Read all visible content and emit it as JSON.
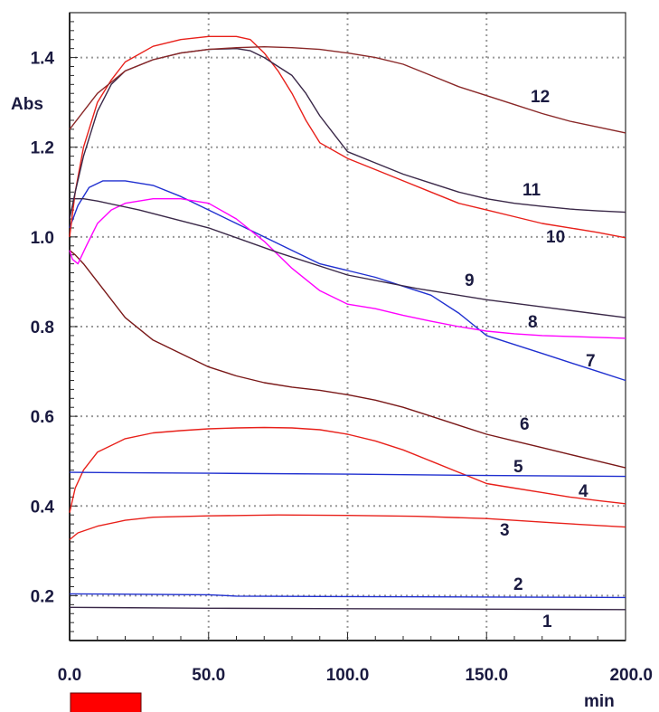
{
  "chart_data": {
    "type": "line",
    "title": "",
    "xlabel": "min",
    "ylabel": "Abs",
    "xlim": [
      0,
      200
    ],
    "ylim": [
      0.1,
      1.5
    ],
    "xticks": [
      "0.0",
      "50.0",
      "100.0",
      "150.0",
      "200.0"
    ],
    "yticks": [
      "0.2",
      "0.4",
      "0.6",
      "0.8",
      "1.0",
      "1.2",
      "1.4"
    ],
    "grid": true,
    "legend_swatch_color": "#ff0000",
    "series": [
      {
        "name": "1",
        "color": "#3a2848",
        "x": [
          0,
          50,
          100,
          150,
          200
        ],
        "y": [
          0.174,
          0.172,
          0.171,
          0.17,
          0.169
        ]
      },
      {
        "name": "2",
        "color": "#2030d0",
        "x": [
          0,
          50,
          60,
          100,
          150,
          200
        ],
        "y": [
          0.204,
          0.202,
          0.199,
          0.198,
          0.197,
          0.196
        ]
      },
      {
        "name": "3",
        "color": "#e8201a",
        "x": [
          0,
          3,
          10,
          20,
          30,
          50,
          75,
          100,
          125,
          150,
          175,
          200
        ],
        "y": [
          0.325,
          0.34,
          0.355,
          0.368,
          0.375,
          0.378,
          0.38,
          0.379,
          0.377,
          0.372,
          0.362,
          0.353
        ]
      },
      {
        "name": "4",
        "color": "#e8201a",
        "x": [
          0,
          2,
          5,
          10,
          20,
          30,
          40,
          50,
          60,
          70,
          80,
          90,
          100,
          110,
          120,
          130,
          140,
          150,
          160,
          170,
          180,
          190,
          200
        ],
        "y": [
          0.385,
          0.44,
          0.48,
          0.52,
          0.55,
          0.563,
          0.568,
          0.572,
          0.574,
          0.575,
          0.574,
          0.57,
          0.56,
          0.545,
          0.525,
          0.5,
          0.475,
          0.45,
          0.44,
          0.43,
          0.42,
          0.412,
          0.405
        ]
      },
      {
        "name": "5",
        "color": "#2030d0",
        "x": [
          0,
          50,
          100,
          150,
          200
        ],
        "y": [
          0.475,
          0.473,
          0.471,
          0.468,
          0.466
        ]
      },
      {
        "name": "6",
        "color": "#7a1818",
        "x": [
          0,
          2,
          5,
          10,
          20,
          30,
          40,
          50,
          60,
          70,
          80,
          90,
          100,
          110,
          120,
          130,
          140,
          150,
          160,
          170,
          180,
          190,
          200
        ],
        "y": [
          0.97,
          0.96,
          0.94,
          0.9,
          0.82,
          0.77,
          0.74,
          0.71,
          0.69,
          0.675,
          0.665,
          0.658,
          0.648,
          0.636,
          0.62,
          0.6,
          0.58,
          0.56,
          0.545,
          0.53,
          0.515,
          0.5,
          0.485
        ]
      },
      {
        "name": "7",
        "color": "#2030d0",
        "x": [
          0,
          3,
          7,
          12,
          20,
          30,
          40,
          50,
          60,
          70,
          80,
          90,
          100,
          110,
          120,
          130,
          140,
          150,
          160,
          170,
          180,
          190,
          200
        ],
        "y": [
          1.02,
          1.07,
          1.11,
          1.125,
          1.125,
          1.115,
          1.09,
          1.06,
          1.03,
          1.0,
          0.97,
          0.94,
          0.925,
          0.91,
          0.89,
          0.87,
          0.83,
          0.78,
          0.76,
          0.74,
          0.72,
          0.7,
          0.68
        ]
      },
      {
        "name": "8",
        "color": "#ff00ff",
        "x": [
          0,
          1,
          3,
          6,
          10,
          15,
          20,
          30,
          40,
          50,
          60,
          70,
          80,
          90,
          100,
          110,
          120,
          130,
          140,
          150,
          160,
          170,
          180,
          190,
          200
        ],
        "y": [
          0.97,
          0.95,
          0.94,
          0.98,
          1.03,
          1.06,
          1.075,
          1.085,
          1.085,
          1.075,
          1.04,
          0.99,
          0.93,
          0.88,
          0.85,
          0.84,
          0.825,
          0.812,
          0.8,
          0.79,
          0.784,
          0.78,
          0.778,
          0.776,
          0.774
        ]
      },
      {
        "name": "9",
        "color": "#3a2848",
        "x": [
          0,
          5,
          10,
          25,
          50,
          75,
          100,
          125,
          150,
          175,
          200
        ],
        "y": [
          1.085,
          1.085,
          1.08,
          1.06,
          1.02,
          0.965,
          0.915,
          0.885,
          0.86,
          0.84,
          0.82
        ]
      },
      {
        "name": "10",
        "color": "#e8201a",
        "x": [
          0,
          2,
          5,
          10,
          15,
          20,
          30,
          40,
          50,
          60,
          65,
          70,
          75,
          80,
          85,
          90,
          100,
          110,
          120,
          130,
          140,
          150,
          160,
          170,
          180,
          190,
          200
        ],
        "y": [
          1.0,
          1.1,
          1.2,
          1.3,
          1.35,
          1.39,
          1.425,
          1.44,
          1.447,
          1.447,
          1.44,
          1.41,
          1.37,
          1.32,
          1.26,
          1.21,
          1.175,
          1.15,
          1.125,
          1.1,
          1.075,
          1.06,
          1.045,
          1.03,
          1.02,
          1.01,
          0.998
        ]
      },
      {
        "name": "11",
        "color": "#3a2848",
        "x": [
          0,
          2,
          5,
          10,
          15,
          20,
          30,
          40,
          50,
          60,
          65,
          70,
          75,
          80,
          85,
          90,
          95,
          100,
          110,
          120,
          130,
          140,
          150,
          160,
          170,
          180,
          190,
          200
        ],
        "y": [
          1.04,
          1.1,
          1.18,
          1.28,
          1.34,
          1.37,
          1.395,
          1.41,
          1.418,
          1.42,
          1.415,
          1.4,
          1.38,
          1.36,
          1.32,
          1.27,
          1.23,
          1.19,
          1.165,
          1.14,
          1.12,
          1.1,
          1.085,
          1.075,
          1.068,
          1.062,
          1.058,
          1.055
        ]
      },
      {
        "name": "12",
        "color": "#8a2828",
        "x": [
          0,
          5,
          10,
          20,
          30,
          40,
          50,
          60,
          70,
          80,
          90,
          100,
          110,
          120,
          130,
          140,
          150,
          160,
          170,
          180,
          190,
          200
        ],
        "y": [
          1.24,
          1.28,
          1.32,
          1.37,
          1.395,
          1.41,
          1.418,
          1.422,
          1.424,
          1.422,
          1.418,
          1.41,
          1.4,
          1.385,
          1.36,
          1.335,
          1.315,
          1.295,
          1.275,
          1.258,
          1.245,
          1.232
        ]
      }
    ]
  }
}
